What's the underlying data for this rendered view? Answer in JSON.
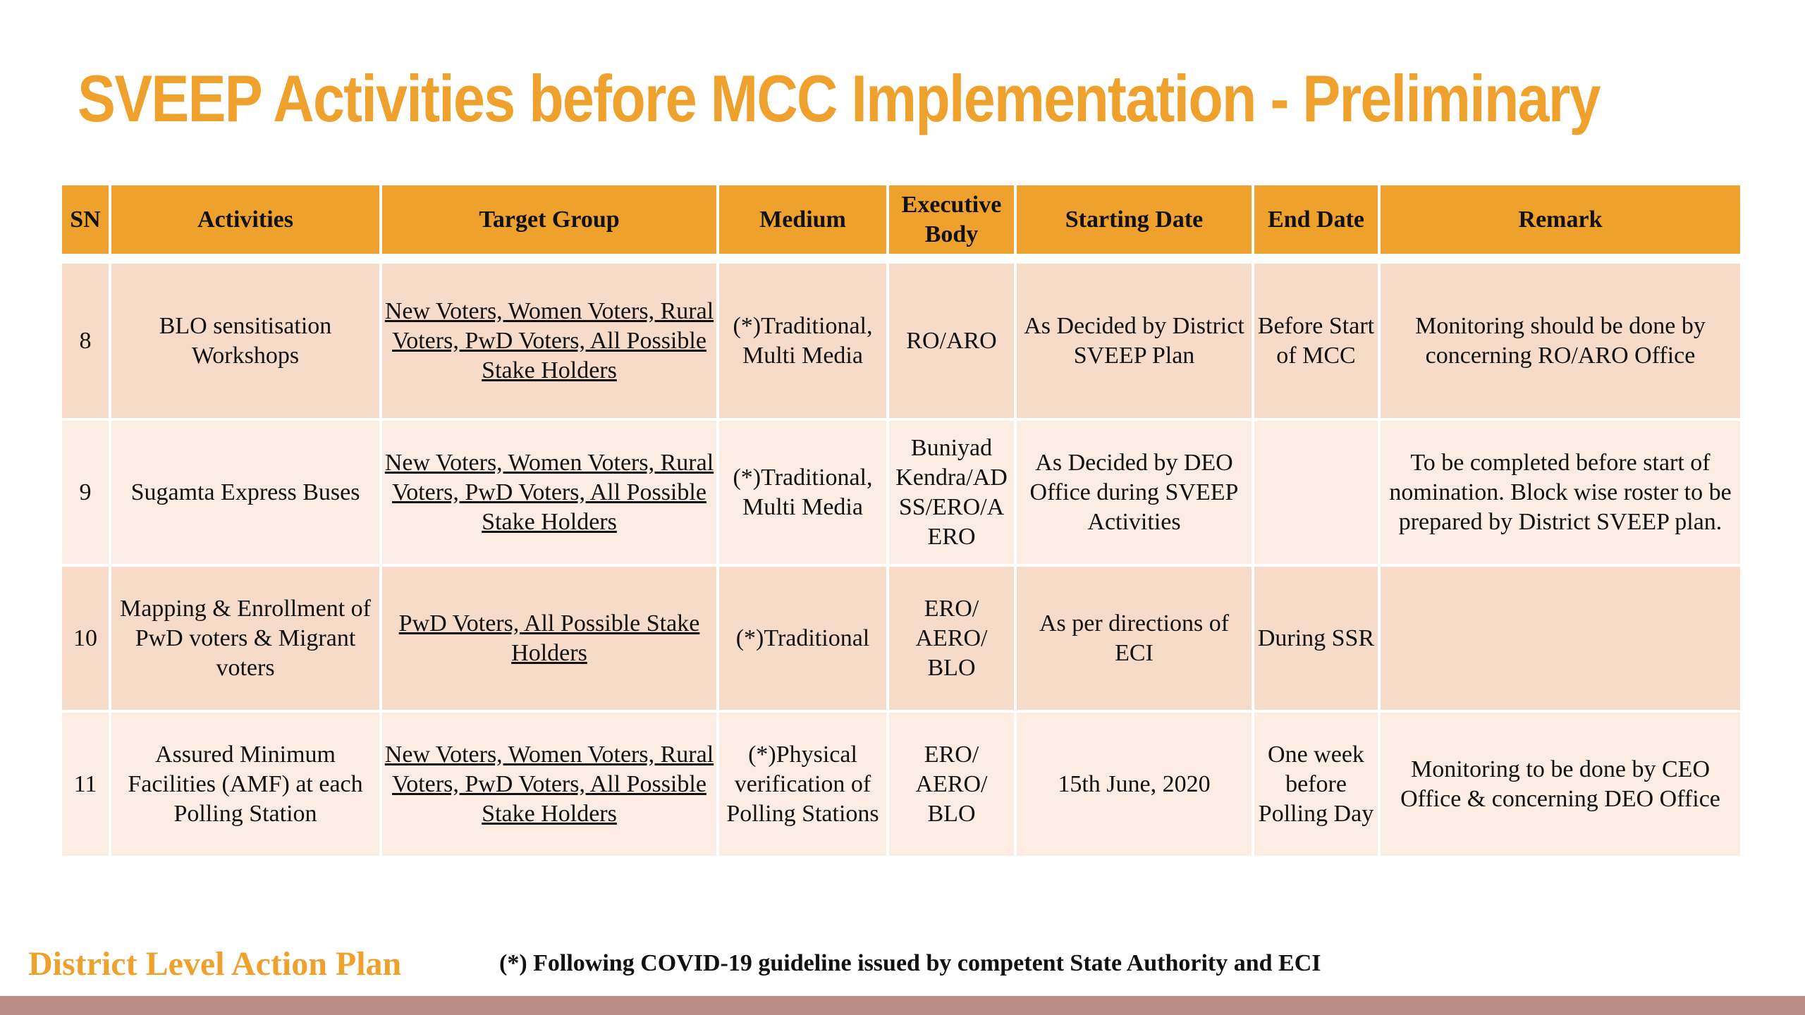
{
  "title": "SVEEP Activities before MCC Implementation - Preliminary",
  "table": {
    "headers": [
      "SN",
      "Activities",
      "Target Group",
      "Medium",
      "Executive Body",
      "Starting Date",
      "End Date",
      "Remark"
    ],
    "rows": [
      {
        "sn": "8",
        "activity": "BLO sensitisation Workshops",
        "target_group": "New Voters, Women Voters, Rural Voters, PwD Voters,  All Possible Stake Holders",
        "medium": "(*)Traditional, Multi Media",
        "executive_body": "RO/ARO",
        "starting_date": "As Decided by District SVEEP Plan",
        "end_date": "Before Start of MCC",
        "remark": "Monitoring should be done by concerning RO/ARO Office"
      },
      {
        "sn": "9",
        "activity": "Sugamta Express Buses",
        "target_group": "New Voters, Women Voters, Rural Voters, PwD Voters,  All Possible Stake Holders",
        "medium": "(*)Traditional, Multi Media",
        "executive_body": "Buniyad Kendra/AD SS/ERO/A ERO",
        "starting_date": "As Decided by DEO Office during SVEEP Activities",
        "end_date": "",
        "remark": "To be completed before start of nomination. Block wise roster to be prepared by District SVEEP plan."
      },
      {
        "sn": "10",
        "activity": "Mapping & Enrollment of PwD voters &  Migrant voters",
        "target_group": "PwD Voters,  All Possible Stake Holders",
        "medium": "(*)Traditional",
        "executive_body": "ERO/ AERO/ BLO",
        "starting_date": "As per directions of ECI",
        "end_date": "During SSR",
        "remark": ""
      },
      {
        "sn": "11",
        "activity": "Assured Minimum Facilities (AMF) at each Polling Station",
        "target_group": "New Voters, Women Voters, Rural Voters, PwD Voters,  All Possible Stake Holders",
        "medium": "(*)Physical verification of Polling Stations",
        "executive_body": "ERO/ AERO/ BLO",
        "starting_date": "15th June, 2020",
        "end_date": "One week before Polling Day",
        "remark": "Monitoring to be done by CEO Office & concerning DEO Office"
      }
    ]
  },
  "footer": {
    "left_label": "District Level Action Plan",
    "note": "(*) Following COVID-19 guideline issued by competent State Authority and ECI"
  }
}
